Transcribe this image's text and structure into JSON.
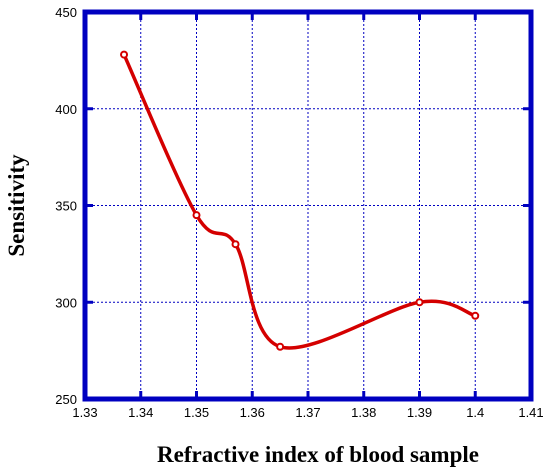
{
  "chart_data": {
    "type": "scatter",
    "title": "",
    "xlabel": "Refractive index of blood sample",
    "ylabel": "Sensitivity",
    "xlim": [
      1.33,
      1.41
    ],
    "ylim": [
      250,
      450
    ],
    "x_ticks": [
      "1.33",
      "1.34",
      "1.35",
      "1.36",
      "1.37",
      "1.38",
      "1.39",
      "1.4",
      "1.41"
    ],
    "y_ticks": [
      "250",
      "300",
      "350",
      "400",
      "450"
    ],
    "grid": true,
    "series": [
      {
        "x": [
          1.337,
          1.35,
          1.357,
          1.365,
          1.39,
          1.4
        ],
        "y": [
          428,
          345,
          330,
          277,
          300,
          293
        ],
        "color": "#d40000",
        "marker": "open-circle",
        "fit": "smooth-spline"
      }
    ],
    "frame_color": "#0000c0",
    "grid_color": "#0000c0"
  }
}
